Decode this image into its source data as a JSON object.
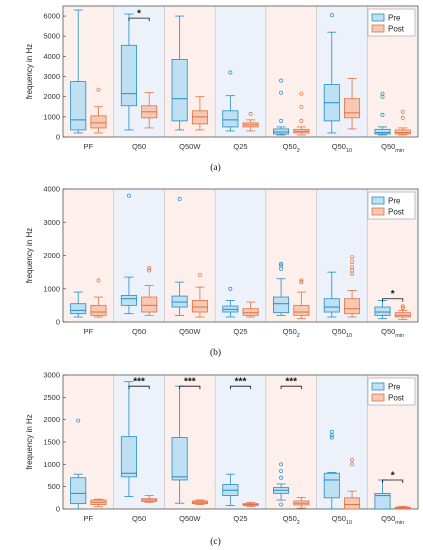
{
  "figure": {
    "colors": {
      "pre_fill": "#bfe0f3",
      "pre_stroke": "#1f8ec9",
      "post_fill": "#f7c8b3",
      "post_stroke": "#e3703f",
      "bg_pink": "#fdf0ec",
      "bg_blue": "#edf2fa"
    },
    "background_pattern": [
      "pink",
      "blue",
      "pink",
      "blue",
      "pink",
      "blue",
      "pink"
    ]
  },
  "chart_data": [
    {
      "type": "box",
      "caption": "(a)",
      "ylabel": "frequency in Hz",
      "ylim": [
        0,
        6500
      ],
      "yticks": [
        0,
        1000,
        2000,
        3000,
        4000,
        5000,
        6000
      ],
      "legend": {
        "position": "top-right",
        "entries": [
          "Pre",
          "Post"
        ]
      },
      "categories": [
        {
          "label": "PF",
          "sub": ""
        },
        {
          "label": "Q50",
          "sub": ""
        },
        {
          "label": "Q50W",
          "sub": ""
        },
        {
          "label": "Q25",
          "sub": ""
        },
        {
          "label": "Q50",
          "sub": "2"
        },
        {
          "label": "Q50",
          "sub": "10"
        },
        {
          "label": "Q50",
          "sub": "min"
        }
      ],
      "series": [
        {
          "name": "Pre",
          "boxes": [
            {
              "min": 200,
              "q1": 350,
              "median": 850,
              "q3": 2750,
              "max": 6300,
              "outliers": []
            },
            {
              "min": 350,
              "q1": 1550,
              "median": 2150,
              "q3": 4550,
              "max": 6100,
              "outliers": []
            },
            {
              "min": 350,
              "q1": 800,
              "median": 1900,
              "q3": 3850,
              "max": 6000,
              "outliers": []
            },
            {
              "min": 300,
              "q1": 500,
              "median": 850,
              "q3": 1300,
              "max": 2050,
              "outliers": [
                3200
              ]
            },
            {
              "min": 100,
              "q1": 150,
              "median": 250,
              "q3": 400,
              "max": 500,
              "outliers": [
                800,
                2200,
                2800
              ]
            },
            {
              "min": 200,
              "q1": 800,
              "median": 1700,
              "q3": 2600,
              "max": 5200,
              "outliers": [
                6050
              ]
            },
            {
              "min": 100,
              "q1": 150,
              "median": 220,
              "q3": 380,
              "max": 500,
              "outliers": [
                1100,
                2000,
                2150
              ]
            }
          ]
        },
        {
          "name": "Post",
          "boxes": [
            {
              "min": 200,
              "q1": 450,
              "median": 700,
              "q3": 1050,
              "max": 1500,
              "outliers": [
                2350
              ]
            },
            {
              "min": 450,
              "q1": 950,
              "median": 1250,
              "q3": 1550,
              "max": 2200,
              "outliers": []
            },
            {
              "min": 350,
              "q1": 650,
              "median": 1000,
              "q3": 1300,
              "max": 2000,
              "outliers": []
            },
            {
              "min": 300,
              "q1": 500,
              "median": 600,
              "q3": 700,
              "max": 850,
              "outliers": [
                1150
              ]
            },
            {
              "min": 100,
              "q1": 200,
              "median": 280,
              "q3": 380,
              "max": 500,
              "outliers": [
                800,
                1500,
                2150
              ]
            },
            {
              "min": 400,
              "q1": 950,
              "median": 1200,
              "q3": 1900,
              "max": 2900,
              "outliers": []
            },
            {
              "min": 100,
              "q1": 150,
              "median": 220,
              "q3": 350,
              "max": 450,
              "outliers": [
                950,
                1250
              ]
            }
          ]
        }
      ],
      "significance": [
        {
          "category": 1,
          "label": "*",
          "y": 5900
        }
      ]
    },
    {
      "type": "box",
      "caption": "(b)",
      "ylabel": "frequency in Hz",
      "ylim": [
        0,
        4000
      ],
      "yticks": [
        0,
        1000,
        2000,
        3000,
        4000
      ],
      "legend": {
        "position": "top-right",
        "entries": [
          "Pre",
          "Post"
        ]
      },
      "categories": [
        {
          "label": "PF",
          "sub": ""
        },
        {
          "label": "Q50",
          "sub": ""
        },
        {
          "label": "Q50W",
          "sub": ""
        },
        {
          "label": "Q25",
          "sub": ""
        },
        {
          "label": "Q50",
          "sub": "2"
        },
        {
          "label": "Q50",
          "sub": "10"
        },
        {
          "label": "Q50",
          "sub": "min"
        }
      ],
      "series": [
        {
          "name": "Pre",
          "boxes": [
            {
              "min": 150,
              "q1": 250,
              "median": 350,
              "q3": 550,
              "max": 900,
              "outliers": []
            },
            {
              "min": 250,
              "q1": 500,
              "median": 700,
              "q3": 800,
              "max": 1350,
              "outliers": [
                3800
              ]
            },
            {
              "min": 200,
              "q1": 450,
              "median": 600,
              "q3": 780,
              "max": 1200,
              "outliers": [
                3700
              ]
            },
            {
              "min": 150,
              "q1": 300,
              "median": 380,
              "q3": 480,
              "max": 650,
              "outliers": [
                1000
              ]
            },
            {
              "min": 200,
              "q1": 280,
              "median": 550,
              "q3": 750,
              "max": 1300,
              "outliers": [
                1600,
                1700,
                1750
              ]
            },
            {
              "min": 150,
              "q1": 300,
              "median": 450,
              "q3": 700,
              "max": 1500,
              "outliers": []
            },
            {
              "min": 100,
              "q1": 200,
              "median": 300,
              "q3": 450,
              "max": 650,
              "outliers": []
            }
          ]
        },
        {
          "name": "Post",
          "boxes": [
            {
              "min": 150,
              "q1": 200,
              "median": 300,
              "q3": 500,
              "max": 750,
              "outliers": [
                1250
              ]
            },
            {
              "min": 200,
              "q1": 300,
              "median": 500,
              "q3": 750,
              "max": 1100,
              "outliers": [
                1550,
                1620
              ]
            },
            {
              "min": 150,
              "q1": 300,
              "median": 450,
              "q3": 650,
              "max": 1050,
              "outliers": [
                1420
              ]
            },
            {
              "min": 150,
              "q1": 200,
              "median": 280,
              "q3": 400,
              "max": 600,
              "outliers": []
            },
            {
              "min": 100,
              "q1": 200,
              "median": 300,
              "q3": 500,
              "max": 900,
              "outliers": [
                1200,
                1250
              ]
            },
            {
              "min": 150,
              "q1": 250,
              "median": 400,
              "q3": 700,
              "max": 950,
              "outliers": [
                1450,
                1550,
                1650,
                1800,
                1950
              ]
            },
            {
              "min": 80,
              "q1": 150,
              "median": 200,
              "q3": 280,
              "max": 350,
              "outliers": [
                420,
                470
              ]
            }
          ]
        }
      ],
      "significance": [
        {
          "category": 6,
          "label": "*",
          "y": 700
        }
      ]
    },
    {
      "type": "box",
      "caption": "(c)",
      "ylabel": "frequency in Hz",
      "ylim": [
        0,
        3000
      ],
      "yticks": [
        0,
        500,
        1000,
        1500,
        2000,
        2500,
        3000
      ],
      "legend": {
        "position": "top-right",
        "entries": [
          "Pre",
          "Post"
        ]
      },
      "categories": [
        {
          "label": "PF",
          "sub": ""
        },
        {
          "label": "Q50",
          "sub": ""
        },
        {
          "label": "Q50W",
          "sub": ""
        },
        {
          "label": "Q25",
          "sub": ""
        },
        {
          "label": "Q50",
          "sub": "2"
        },
        {
          "label": "Q50",
          "sub": "10"
        },
        {
          "label": "Q50",
          "sub": "min"
        }
      ],
      "series": [
        {
          "name": "Pre",
          "boxes": [
            {
              "min": 0,
              "q1": 120,
              "median": 350,
              "q3": 700,
              "max": 780,
              "outliers": [
                1980
              ]
            },
            {
              "min": 280,
              "q1": 720,
              "median": 800,
              "q3": 1620,
              "max": 2850,
              "outliers": []
            },
            {
              "min": 130,
              "q1": 650,
              "median": 720,
              "q3": 1600,
              "max": 2750,
              "outliers": []
            },
            {
              "min": 80,
              "q1": 300,
              "median": 420,
              "q3": 550,
              "max": 780,
              "outliers": []
            },
            {
              "min": 200,
              "q1": 350,
              "median": 420,
              "q3": 480,
              "max": 560,
              "outliers": [
                700,
                850,
                1000,
                100
              ]
            },
            {
              "min": 0,
              "q1": 250,
              "median": 650,
              "q3": 800,
              "max": 820,
              "outliers": [
                1600,
                1650,
                1730
              ]
            },
            {
              "min": 0,
              "q1": 0,
              "median": 300,
              "q3": 350,
              "max": 650,
              "outliers": []
            }
          ]
        },
        {
          "name": "Post",
          "boxes": [
            {
              "min": 50,
              "q1": 100,
              "median": 150,
              "q3": 200,
              "max": 220,
              "outliers": []
            },
            {
              "min": 150,
              "q1": 170,
              "median": 200,
              "q3": 230,
              "max": 300,
              "outliers": []
            },
            {
              "min": 100,
              "q1": 120,
              "median": 150,
              "q3": 180,
              "max": 200,
              "outliers": []
            },
            {
              "min": 60,
              "q1": 80,
              "median": 100,
              "q3": 120,
              "max": 150,
              "outliers": []
            },
            {
              "min": 20,
              "q1": 90,
              "median": 130,
              "q3": 180,
              "max": 260,
              "outliers": []
            },
            {
              "min": 0,
              "q1": 0,
              "median": 100,
              "q3": 250,
              "max": 400,
              "outliers": [
                1000,
                1100
              ]
            },
            {
              "min": 0,
              "q1": 0,
              "median": 20,
              "q3": 40,
              "max": 60,
              "outliers": []
            }
          ]
        }
      ],
      "significance": [
        {
          "category": 1,
          "label": "***",
          "y": 2750
        },
        {
          "category": 2,
          "label": "***",
          "y": 2750
        },
        {
          "category": 3,
          "label": "***",
          "y": 2750
        },
        {
          "category": 4,
          "label": "***",
          "y": 2750
        },
        {
          "category": 6,
          "label": "*",
          "y": 650
        }
      ]
    }
  ]
}
